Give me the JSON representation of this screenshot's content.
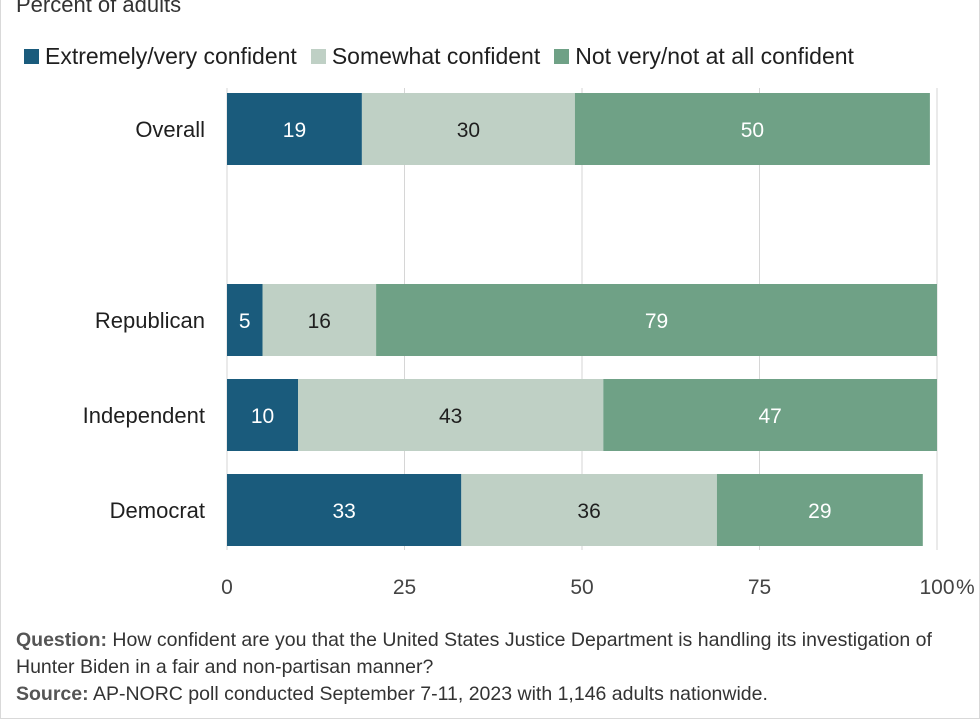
{
  "chart_data": {
    "type": "bar",
    "orientation": "horizontal",
    "stacked": true,
    "subtitle": "Percent of adults",
    "categories": [
      "Overall",
      "Republican",
      "Independent",
      "Democrat"
    ],
    "series": [
      {
        "name": "Extremely/very confident",
        "color": "#1a5b7c",
        "label_color": "#ffffff",
        "values": [
          19,
          5,
          10,
          33
        ]
      },
      {
        "name": "Somewhat confident",
        "color": "#bfd0c5",
        "label_color": "#1f1f1f",
        "values": [
          30,
          16,
          43,
          36
        ]
      },
      {
        "name": "Not very/not at all confident",
        "color": "#6fa186",
        "label_color": "#ffffff",
        "values": [
          50,
          79,
          47,
          29
        ]
      }
    ],
    "xlim": [
      0,
      100
    ],
    "x_ticks": [
      "0",
      "25",
      "50",
      "75",
      "100"
    ],
    "x_unit": "%",
    "grid": true,
    "legend_position": "top-left"
  },
  "notes": {
    "question_label": "Question:",
    "question_text": "How confident are you that the United States Justice Department is handling its investigation of Hunter Biden in a fair and non-partisan manner?",
    "source_label": "Source:",
    "source_text": "AP-NORC poll conducted September 7-11, 2023 with 1,146 adults nationwide."
  }
}
